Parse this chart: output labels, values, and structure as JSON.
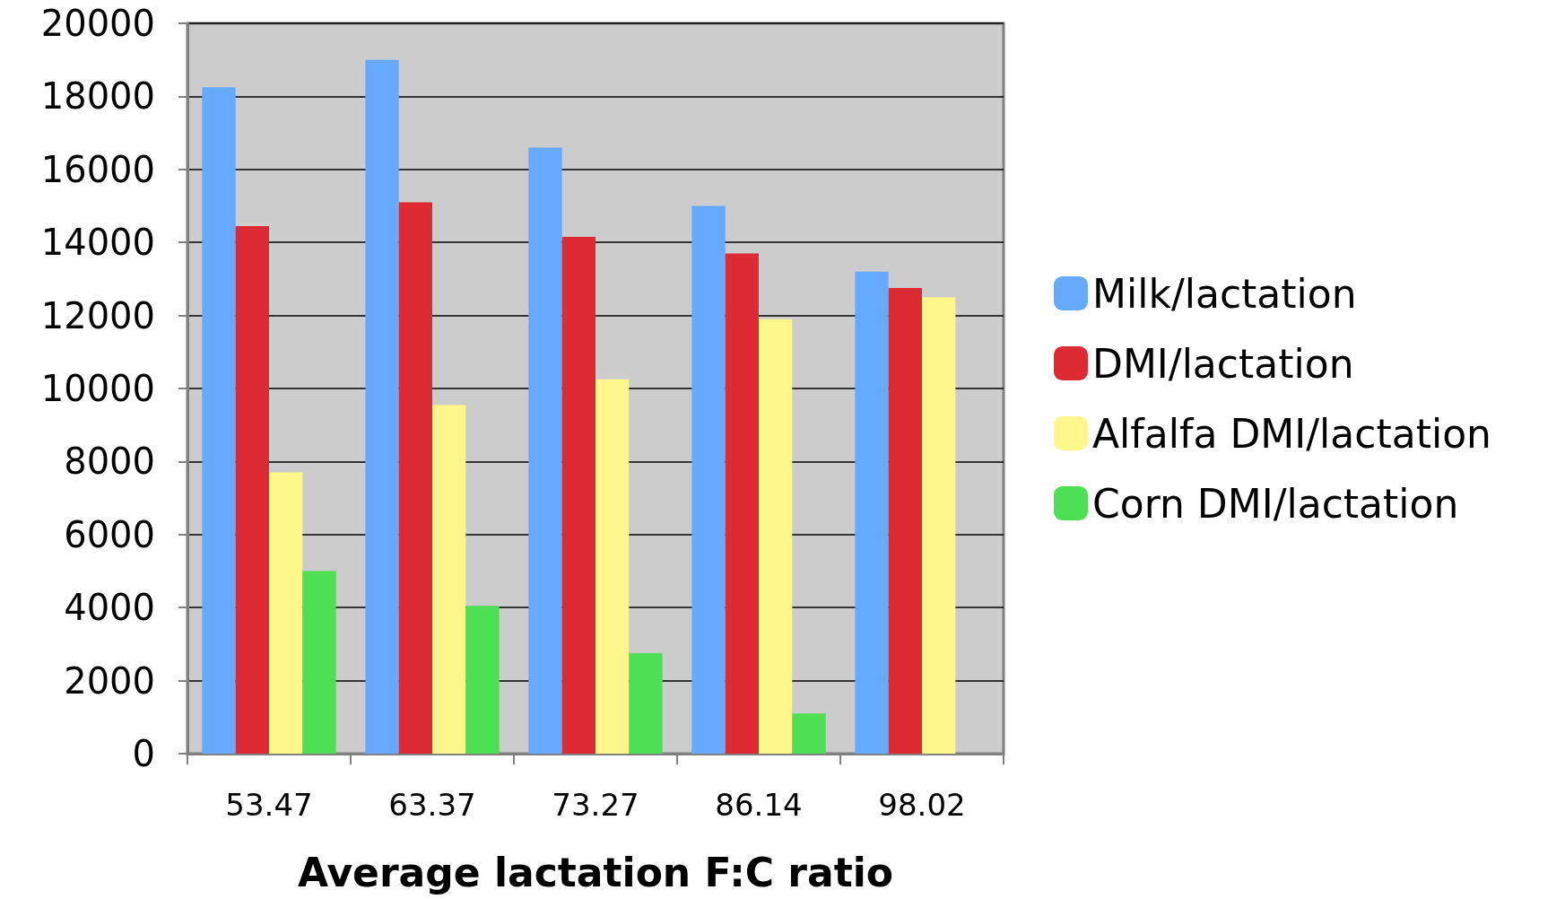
{
  "chart_data": {
    "type": "bar",
    "xlabel": "Average lactation F:C ratio",
    "categories": [
      "53.47",
      "63.37",
      "73.27",
      "86.14",
      "98.02"
    ],
    "series": [
      {
        "name": "Milk/lactation",
        "color": "#66aaff",
        "values": [
          18250,
          19000,
          16600,
          15000,
          13200
        ]
      },
      {
        "name": "DMI/lactation",
        "color": "#dd2a33",
        "values": [
          14450,
          15100,
          14150,
          13700,
          12750
        ]
      },
      {
        "name": "Alfalfa DMI/lactation",
        "color": "#fff68c",
        "values": [
          7700,
          9550,
          10250,
          11900,
          12500
        ]
      },
      {
        "name": "Corn DMI/lactation",
        "color": "#4ce052",
        "values": [
          5000,
          4050,
          2750,
          1100,
          0
        ]
      }
    ],
    "ylim": [
      0,
      20000
    ],
    "yticks": [
      0,
      2000,
      4000,
      6000,
      8000,
      10000,
      12000,
      14000,
      16000,
      18000,
      20000
    ],
    "grid": "y",
    "legend": "right"
  }
}
